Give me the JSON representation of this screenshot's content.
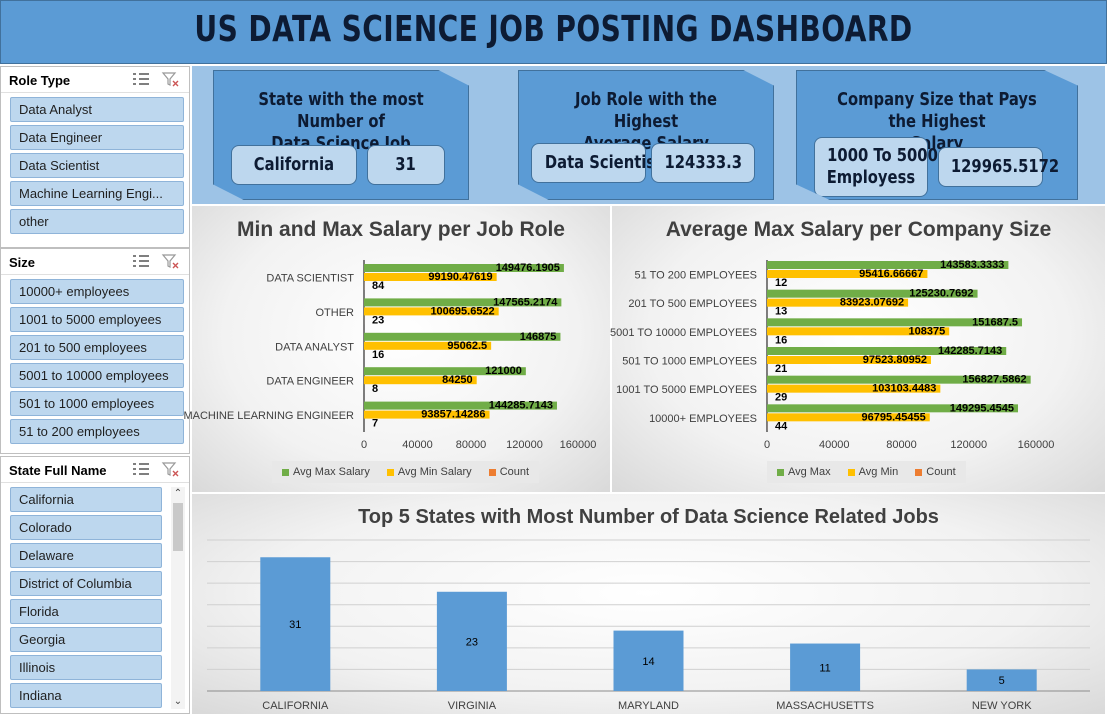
{
  "header": {
    "title": "US DATA SCIENCE JOB POSTING DASHBOARD"
  },
  "slicers": {
    "role_type": {
      "title": "Role Type",
      "items": [
        "Data Analyst",
        "Data Engineer",
        "Data Scientist",
        "Machine Learning Engi...",
        "other"
      ]
    },
    "size": {
      "title": "Size",
      "items": [
        "10000+ employees",
        "1001 to 5000 employees",
        "201 to 500 employees",
        "5001 to 10000 employees",
        "501 to 1000 employees",
        "51 to 200 employees"
      ]
    },
    "state": {
      "title": "State Full Name",
      "items": [
        "California",
        "Colorado",
        "Delaware",
        "District of Columbia",
        "Florida",
        "Georgia",
        "Illinois",
        "Indiana"
      ]
    }
  },
  "kpis": {
    "state": {
      "heading_line1": "State with the most Number of",
      "heading_line2": "Data Science Job",
      "value_name": "California",
      "value_num": "31"
    },
    "role": {
      "heading_line1": "Job Role with the Highest",
      "heading_line2": "Average Salary",
      "value_name": "Data Scientist",
      "value_num": "124333.3"
    },
    "company": {
      "heading_line1": "Company Size that Pays the Highest",
      "heading_line2": "Salary",
      "value_name_line1": "1000 To 5000",
      "value_name_line2": "Employess",
      "value_num": "129965.5172"
    }
  },
  "colors": {
    "max": "#70ad47",
    "min": "#ffc000",
    "count": "#ed7d31",
    "bar": "#5b9bd5"
  },
  "chart_data": [
    {
      "type": "bar",
      "orientation": "horizontal",
      "title": "Min and Max Salary per Job Role",
      "categories": [
        "DATA SCIENTIST",
        "OTHER",
        "DATA ANALYST",
        "DATA ENGINEER",
        "MACHINE LEARNING ENGINEER"
      ],
      "series": [
        {
          "name": "Avg Max Salary",
          "values": [
            149476.1905,
            147565.2174,
            146875,
            121000,
            144285.7143
          ],
          "labels": [
            "149476.1905",
            "147565.2174",
            "146875",
            "121000",
            "144285.7143"
          ]
        },
        {
          "name": "Avg Min Salary",
          "values": [
            99190.47619,
            100695.6522,
            95062.5,
            84250,
            93857.14286
          ],
          "labels": [
            "99190.47619",
            "100695.6522",
            "95062.5",
            "84250",
            "93857.14286"
          ]
        },
        {
          "name": "Count",
          "values": [
            84,
            23,
            16,
            8,
            7
          ],
          "labels": [
            "84",
            "23",
            "16",
            "8",
            "7"
          ]
        }
      ],
      "xlim": [
        0,
        160000
      ],
      "xticks": [
        "0",
        "40000",
        "80000",
        "120000",
        "160000"
      ],
      "legend": "bottom"
    },
    {
      "type": "bar",
      "orientation": "horizontal",
      "title": "Average Max Salary per Company Size",
      "categories": [
        "51 TO 200 EMPLOYEES",
        "201 TO 500 EMPLOYEES",
        "5001 TO 10000 EMPLOYEES",
        "501 TO 1000 EMPLOYEES",
        "1001 TO 5000 EMPLOYEES",
        "10000+ EMPLOYEES"
      ],
      "series": [
        {
          "name": "Avg Max",
          "values": [
            143583.3333,
            125230.7692,
            151687.5,
            142285.7143,
            156827.5862,
            149295.4545
          ],
          "labels": [
            "143583.3333",
            "125230.7692",
            "151687.5",
            "142285.7143",
            "156827.5862",
            "149295.4545"
          ]
        },
        {
          "name": "Avg Min",
          "values": [
            95416.66667,
            83923.07692,
            108375,
            97523.80952,
            103103.4483,
            96795.45455
          ],
          "labels": [
            "95416.66667",
            "83923.07692",
            "108375",
            "97523.80952",
            "103103.4483",
            "96795.45455"
          ]
        },
        {
          "name": "Count",
          "values": [
            12,
            13,
            16,
            21,
            29,
            44
          ],
          "labels": [
            "12",
            "13",
            "16",
            "21",
            "29",
            "44"
          ]
        }
      ],
      "xlim": [
        0,
        160000
      ],
      "xticks": [
        "0",
        "40000",
        "80000",
        "120000",
        "160000"
      ],
      "legend": "bottom"
    },
    {
      "type": "bar",
      "orientation": "vertical",
      "title": "Top 5 States with Most Number of Data Science Related Jobs",
      "categories": [
        "CALIFORNIA",
        "VIRGINIA",
        "MARYLAND",
        "MASSACHUSETTS",
        "NEW YORK"
      ],
      "values": [
        31,
        23,
        14,
        11,
        5
      ],
      "ylim": [
        0,
        35
      ],
      "grid": true
    }
  ]
}
